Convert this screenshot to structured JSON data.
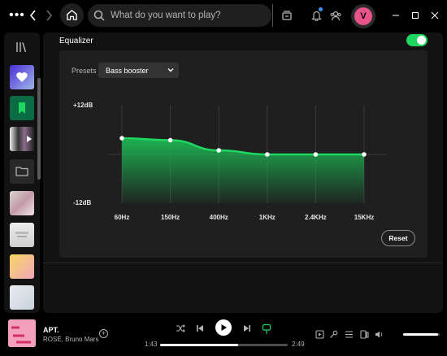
{
  "topbar": {
    "search_placeholder": "What do you want to play?",
    "avatar_initial": "V"
  },
  "equalizer": {
    "title": "Equalizer",
    "enabled": true,
    "presets_label": "Presets",
    "preset_value": "Bass booster",
    "y_max_label": "+12dB",
    "y_min_label": "-12dB",
    "bands": [
      "60Hz",
      "150Hz",
      "400Hz",
      "1KHz",
      "2.4KHz",
      "15KHz"
    ],
    "gains_db": [
      4,
      3.5,
      1,
      0,
      0,
      0
    ],
    "y_range_db": [
      -12,
      12
    ],
    "reset_label": "Reset"
  },
  "player": {
    "title": "APT.",
    "artist": "ROSÉ, Bruno Mars",
    "elapsed": "1:43",
    "duration": "2:49",
    "progress": 0.61,
    "volume": 0.95,
    "accent": "#1ed760"
  }
}
